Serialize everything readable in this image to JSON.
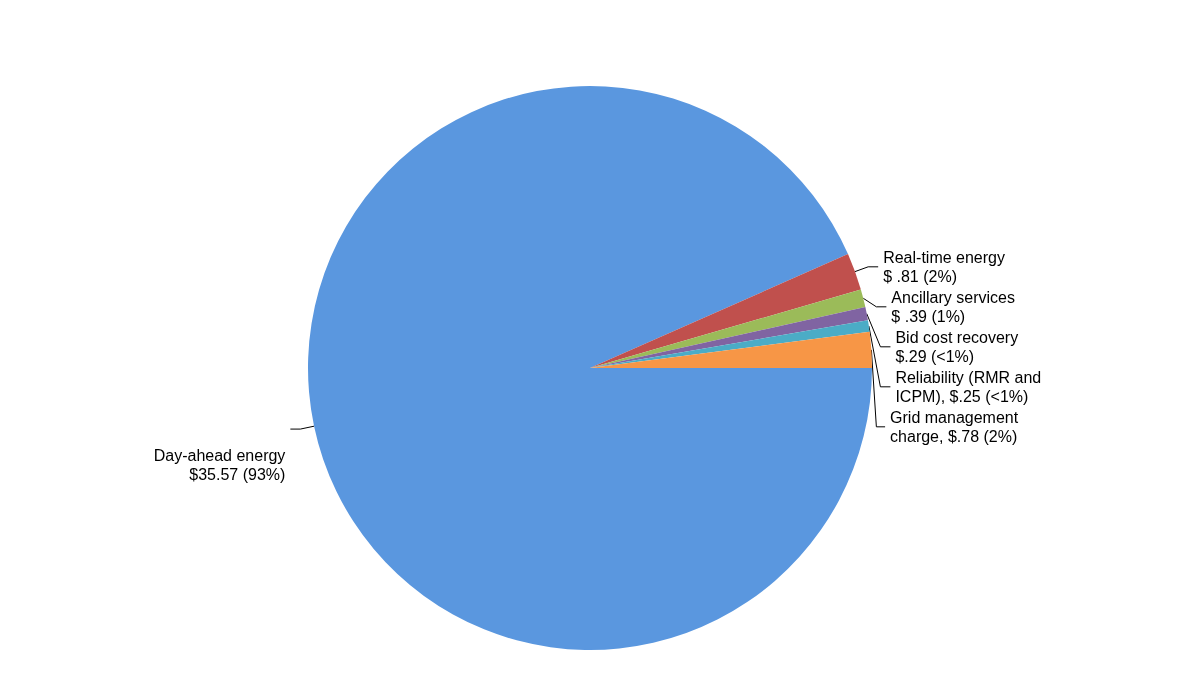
{
  "chart_data": {
    "type": "pie",
    "categories": [
      "Day-ahead energy",
      "Real-time energy",
      "Ancillary services",
      "Bid cost recovery",
      "Reliability (RMR and ICPM)",
      "Grid management charge"
    ],
    "values": [
      35.57,
      0.81,
      0.39,
      0.29,
      0.25,
      0.78
    ],
    "value_labels": [
      "$35.57 (93%)",
      "$ .81 (2%)",
      "$ .39 (1%)",
      "$.29 (<1%)",
      ", $.25 (<1%)",
      ", $.78 (2%)"
    ],
    "colors": [
      "#5a97df",
      "#c0504d",
      "#9bbb59",
      "#8064a2",
      "#4bacc6",
      "#f79646"
    ],
    "legend": false
  }
}
